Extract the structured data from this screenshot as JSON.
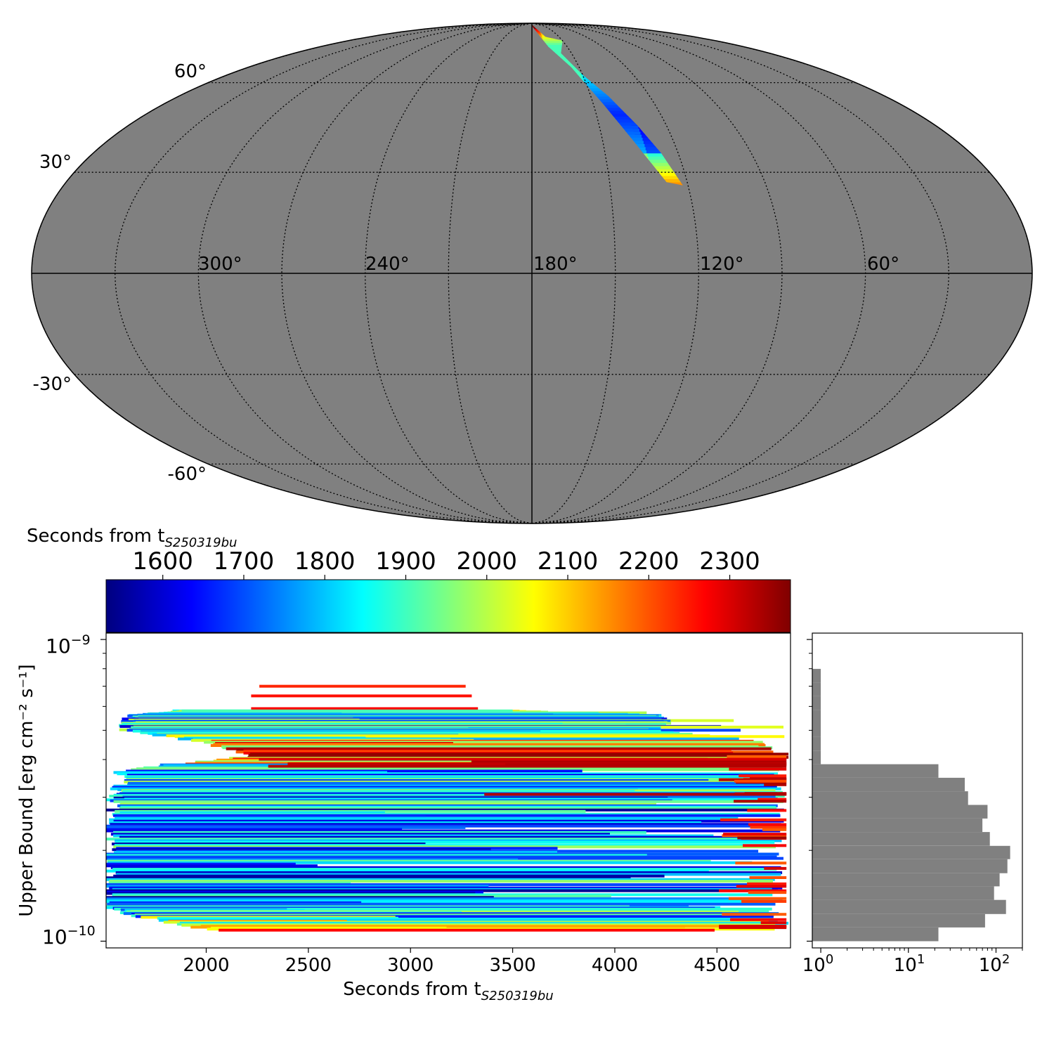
{
  "chart_data": [
    {
      "type": "heatmap",
      "projection": "mollweide",
      "background_color": "#808080",
      "graticule": "dotted",
      "lat_tick_labels": [
        "60°",
        "30°",
        "-30°",
        "-60°"
      ],
      "lat_ticks": [
        60,
        30,
        -30,
        -60
      ],
      "lon_tick_labels": [
        "300°",
        "240°",
        "180°",
        "120°",
        "60°"
      ],
      "lon_ticks": [
        300,
        240,
        180,
        120,
        60
      ],
      "lon_direction": "decreasing-to-right",
      "colormap": "jet",
      "region_outline_lonlat": [
        [
          180,
          88
        ],
        [
          165,
          80
        ],
        [
          150,
          78
        ],
        [
          158,
          72
        ],
        [
          150,
          63
        ],
        [
          141,
          55
        ],
        [
          133,
          45
        ],
        [
          127,
          36
        ],
        [
          122,
          26
        ],
        [
          128,
          27
        ],
        [
          137,
          40
        ],
        [
          145,
          52
        ],
        [
          155,
          66
        ],
        [
          166,
          75
        ],
        [
          178,
          86
        ]
      ],
      "colorbar": {
        "label": "Seconds from t",
        "label_subscript": "S250319bu",
        "ticks": [
          1600,
          1700,
          1800,
          1900,
          2000,
          2100,
          2200,
          2300
        ],
        "range": [
          1530,
          2375
        ],
        "orientation": "horizontal",
        "colors": [
          "#00007f",
          "#0000ff",
          "#007fff",
          "#00ffff",
          "#7fff7f",
          "#ffff00",
          "#ff7f00",
          "#ff0000",
          "#7f0000"
        ]
      }
    },
    {
      "type": "line",
      "xlabel": "Seconds from t",
      "xlabel_subscript": "S250319bu",
      "ylabel": "Upper Bound [erg cm⁻² s⁻¹]",
      "xlim": [
        1510,
        4860
      ],
      "ylim": [
        9.5e-11,
        1.05e-09
      ],
      "yscale": "log",
      "x_ticks": [
        2000,
        2500,
        3000,
        3500,
        4000,
        4500
      ],
      "y_tick_labels": [
        "10⁻⁹",
        "10⁻¹⁰"
      ],
      "color_by": "start time (colorbar)",
      "segments_sample": [
        {
          "x0": 2260,
          "x1": 3270,
          "y": 7e-10
        },
        {
          "x0": 2220,
          "x1": 3300,
          "y": 6.5e-10
        },
        {
          "x0": 2220,
          "x1": 3330,
          "y": 5.9e-10
        },
        {
          "x0": 1880,
          "x1": 3500,
          "y": 5.8e-10
        },
        {
          "x0": 1630,
          "x1": 4250,
          "y": 5.6e-10
        },
        {
          "x0": 1620,
          "x1": 4280,
          "y": 5.3e-10
        },
        {
          "x0": 1600,
          "x1": 4220,
          "y": 5e-10
        },
        {
          "x0": 1980,
          "x1": 4720,
          "y": 4.6e-10
        },
        {
          "x0": 2230,
          "x1": 4840,
          "y": 4.1e-10
        },
        {
          "x0": 1590,
          "x1": 4840,
          "y": 3.7e-10
        },
        {
          "x0": 1570,
          "x1": 4820,
          "y": 3.2e-10
        },
        {
          "x0": 1550,
          "x1": 4840,
          "y": 2.9e-10
        },
        {
          "x0": 1540,
          "x1": 4840,
          "y": 2.5e-10
        },
        {
          "x0": 1530,
          "x1": 4830,
          "y": 2.1e-10
        },
        {
          "x0": 1520,
          "x1": 4830,
          "y": 1.8e-10
        },
        {
          "x0": 1510,
          "x1": 4830,
          "y": 1.5e-10
        },
        {
          "x0": 1510,
          "x1": 4820,
          "y": 1.3e-10
        },
        {
          "x0": 1700,
          "x1": 4800,
          "y": 1.2e-10
        },
        {
          "x0": 2060,
          "x1": 4790,
          "y": 1.08e-10
        }
      ]
    },
    {
      "type": "bar",
      "orientation": "horizontal",
      "xscale": "log",
      "xlim": [
        0.8,
        200
      ],
      "x_tick_labels": [
        "10⁰",
        "10¹",
        "10²"
      ],
      "bar_color": "#808080",
      "bins_y": [
        1e-10,
        1.11e-10,
        1.23e-10,
        1.37e-10,
        1.52e-10,
        1.68e-10,
        1.87e-10,
        2.07e-10,
        2.3e-10,
        2.55e-10,
        2.83e-10,
        3.14e-10,
        3.48e-10,
        3.86e-10,
        4.28e-10,
        4.75e-10,
        5.27e-10,
        5.85e-10,
        6.49e-10,
        7.2e-10
      ],
      "counts": [
        22,
        75,
        130,
        95,
        110,
        135,
        145,
        85,
        70,
        80,
        48,
        44,
        22,
        1,
        1,
        1,
        1,
        1,
        1,
        1
      ]
    }
  ]
}
